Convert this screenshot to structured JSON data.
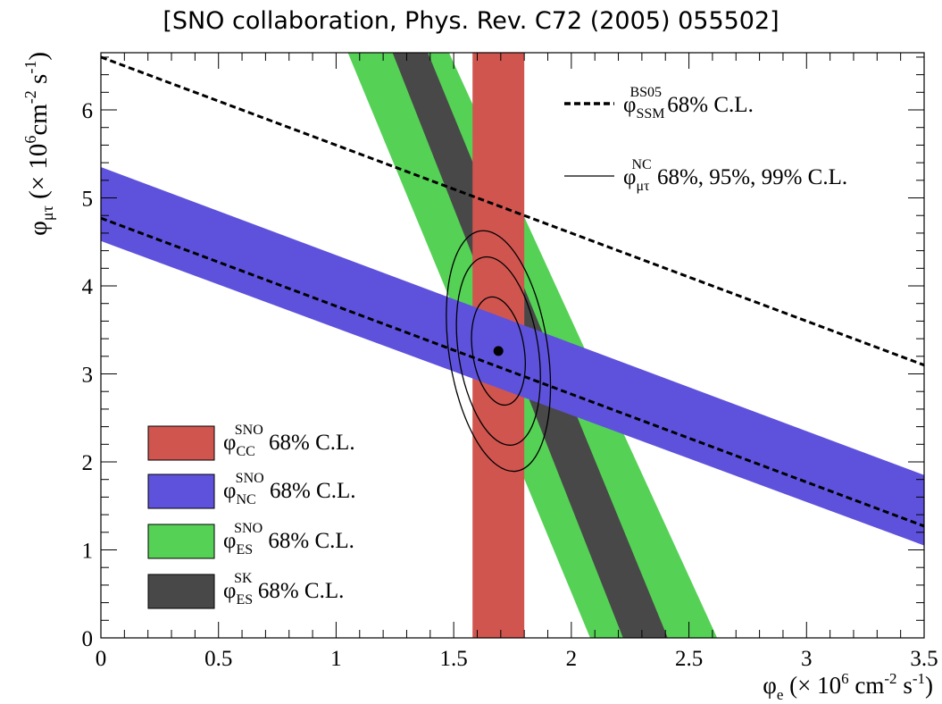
{
  "source_caption": "[SNO collaboration, Phys. Rev. C72 (2005) 055502]",
  "chart_data": {
    "type": "area",
    "xaxis": {
      "symbol": "φ",
      "sub": "e",
      "unit_prefix": " (× 10",
      "exp": "6",
      "unit_mid": " cm",
      "unit_exp": "-2",
      "unit_end": " s",
      "unit_exp2": "-1",
      "unit_close": ")",
      "range": [
        0,
        3.5
      ]
    },
    "yaxis": {
      "symbol": "φ",
      "sub": "μτ",
      "unit_prefix": " (× 10",
      "exp": "6",
      "unit_mid": "cm",
      "unit_exp": "-2",
      "unit_end": " s",
      "unit_exp2": "-1",
      "unit_close": ")",
      "range": [
        0,
        6.65
      ]
    },
    "x_ticks": [
      "0",
      "0.5",
      "1",
      "1.5",
      "2",
      "2.5",
      "3",
      "3.5"
    ],
    "y_ticks": [
      "0",
      "1",
      "2",
      "3",
      "4",
      "5",
      "6"
    ],
    "bands": [
      {
        "name": "phi_ES_SNO",
        "color": "#55d155",
        "kind": "diagonal",
        "lines": [
          [
            1.05,
            6.65,
            2.08,
            0
          ],
          [
            1.48,
            6.65,
            2.62,
            0
          ]
        ]
      },
      {
        "name": "phi_ES_SK",
        "color": "#484848",
        "kind": "diagonal",
        "lines": [
          [
            1.24,
            6.65,
            2.22,
            0
          ],
          [
            1.39,
            6.65,
            2.41,
            0
          ]
        ]
      },
      {
        "name": "phi_CC_SNO",
        "color": "#d0554f",
        "kind": "vertical",
        "x": [
          1.58,
          1.8
        ]
      },
      {
        "name": "phi_NC_SNO",
        "color": "#5e52dc",
        "kind": "diagonal",
        "lines": [
          [
            0,
            5.35,
            3.5,
            1.85
          ],
          [
            0,
            4.51,
            3.5,
            1.05
          ]
        ]
      }
    ],
    "dashed_lines": [
      {
        "name": "SSM",
        "points": [
          [
            0,
            6.6
          ],
          [
            3.5,
            3.1
          ]
        ]
      },
      {
        "name": "NC_center",
        "points": [
          [
            0,
            4.77
          ],
          [
            3.5,
            1.27
          ]
        ]
      }
    ],
    "best_fit": {
      "x": 1.69,
      "y": 3.26
    },
    "contours": [
      {
        "cl": "68%",
        "cx": 1.69,
        "cy": 3.26,
        "rx": 0.11,
        "ry": 0.62,
        "tilt": -0.15
      },
      {
        "cl": "95%",
        "cx": 1.69,
        "cy": 3.26,
        "rx": 0.17,
        "ry": 1.08,
        "tilt": -0.15
      },
      {
        "cl": "99%",
        "cx": 1.69,
        "cy": 3.26,
        "rx": 0.21,
        "ry": 1.38,
        "tilt": -0.15
      }
    ],
    "legend_top": [
      {
        "style": "dashed",
        "sym": "φ",
        "sub": "SSM",
        "sup": "BS05",
        "text": " 68% C.L."
      },
      {
        "style": "solid",
        "sym": "φ",
        "sub": "μτ",
        "sup": "NC",
        "text": " 68%, 95%, 99% C.L."
      }
    ],
    "legend_bottom": [
      {
        "color": "#d0554f",
        "sym": "φ",
        "sub": "CC",
        "sup": "SNO",
        "text": " 68% C.L."
      },
      {
        "color": "#5e52dc",
        "sym": "φ",
        "sub": "NC",
        "sup": "SNO",
        "text": " 68% C.L."
      },
      {
        "color": "#55d155",
        "sym": "φ",
        "sub": "ES",
        "sup": "SNO",
        "text": " 68% C.L."
      },
      {
        "color": "#484848",
        "sym": "φ",
        "sub": "ES",
        "sup": "SK",
        "text": " 68% C.L."
      }
    ]
  }
}
